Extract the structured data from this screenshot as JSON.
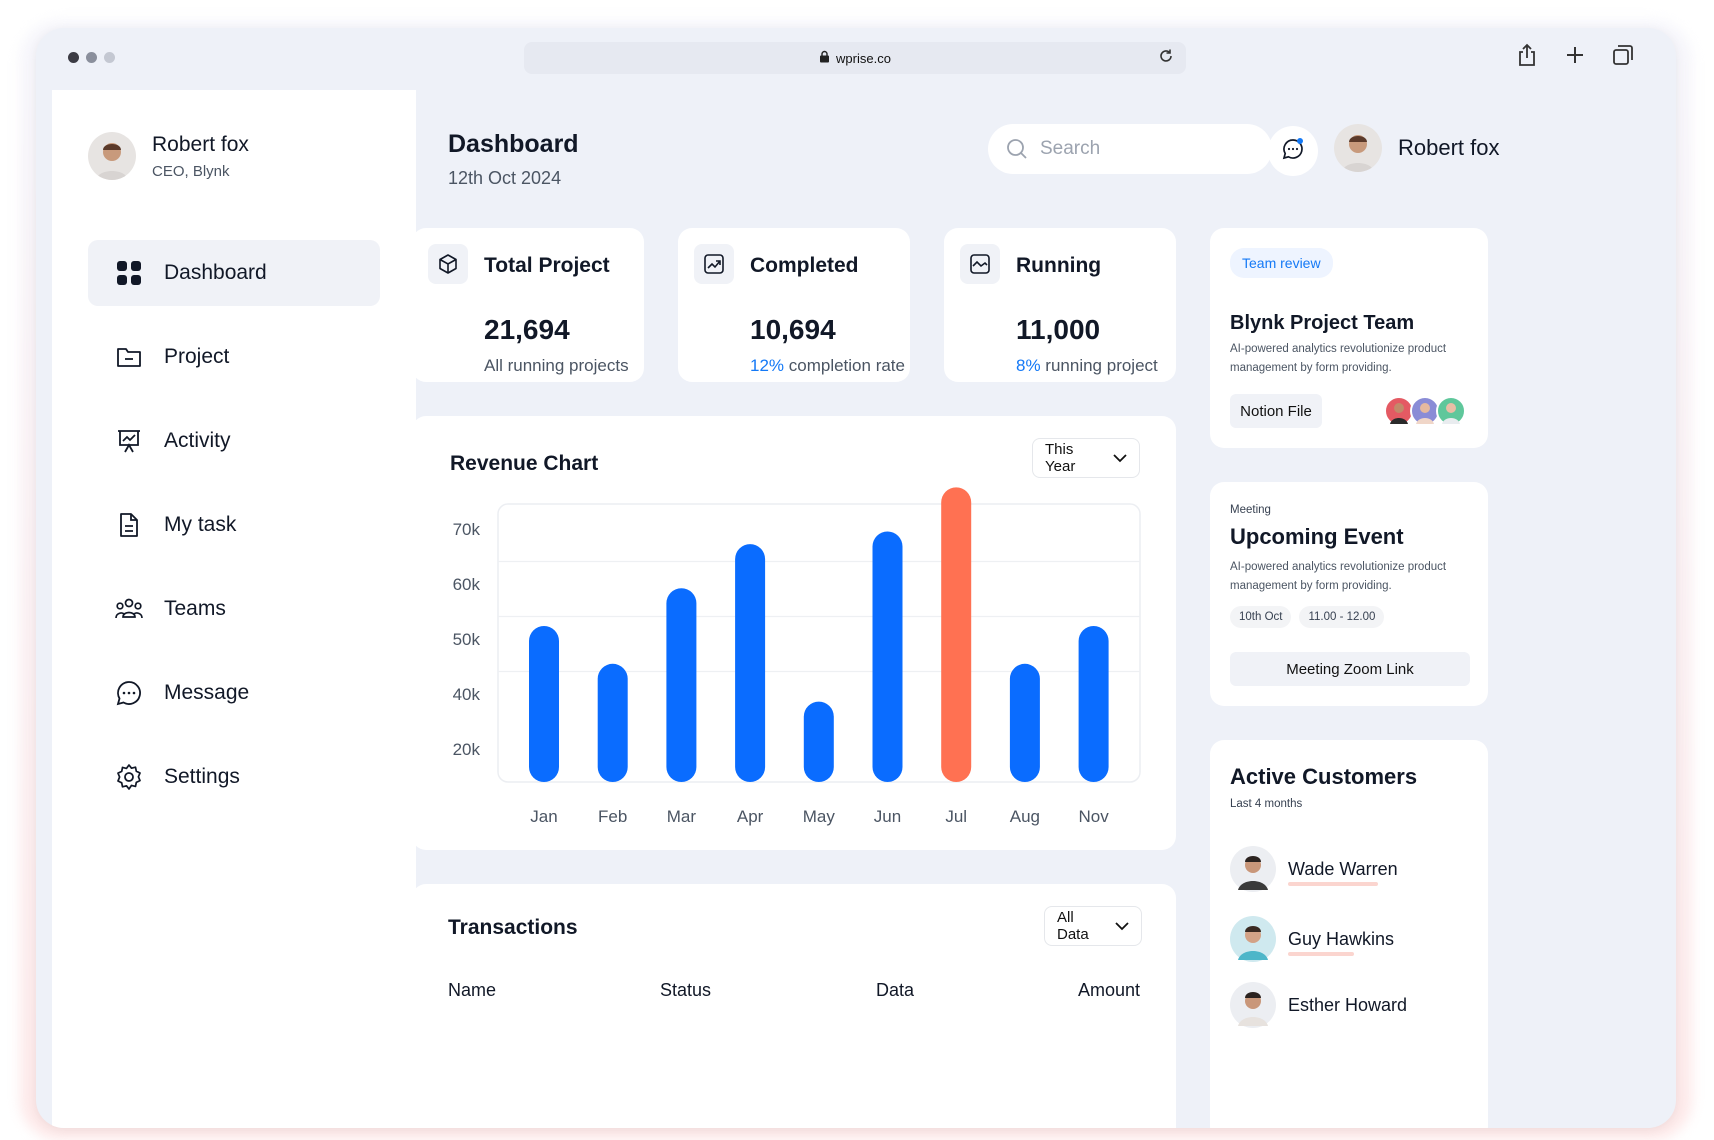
{
  "browser": {
    "url": "wprise.co",
    "dot_colors": [
      "#3b3b44",
      "#8a8f9c",
      "#c4c8d2"
    ]
  },
  "sidebar": {
    "user_name": "Robert fox",
    "user_role": "CEO, Blynk",
    "items": [
      {
        "label": "Dashboard",
        "icon": "dashboard-icon",
        "active": true
      },
      {
        "label": "Project",
        "icon": "folder-icon"
      },
      {
        "label": "Activity",
        "icon": "activity-icon"
      },
      {
        "label": "My task",
        "icon": "document-icon"
      },
      {
        "label": "Teams",
        "icon": "teams-icon"
      },
      {
        "label": "Message",
        "icon": "message-icon"
      },
      {
        "label": "Settings",
        "icon": "gear-icon"
      }
    ]
  },
  "header": {
    "title": "Dashboard",
    "date": "12th Oct 2024",
    "search_placeholder": "Search",
    "user_name": "Robert fox"
  },
  "stats": [
    {
      "label": "Total Project",
      "value": "21,694",
      "highlight": "",
      "sub": "All running projects",
      "icon": "cube-icon"
    },
    {
      "label": "Completed",
      "value": "10,694",
      "highlight": "12%",
      "sub": " completion rate",
      "icon": "trend-up-icon"
    },
    {
      "label": "Running",
      "value": "11,000",
      "highlight": "8%",
      "sub": " running project",
      "icon": "chart-line-icon"
    }
  ],
  "revenue": {
    "title": "Revenue Chart",
    "filter": "This Year"
  },
  "chart_data": {
    "type": "bar",
    "title": "Revenue Chart",
    "categories": [
      "Jan",
      "Feb",
      "Mar",
      "Apr",
      "May",
      "Jun",
      "Jul",
      "Aug",
      "Nov"
    ],
    "values": [
      50,
      44,
      56,
      63,
      38,
      65,
      72,
      44,
      50
    ],
    "highlight_index": 6,
    "y_ticks": [
      "70k",
      "60k",
      "50k",
      "40k",
      "20k"
    ],
    "ylim": [
      20,
      70
    ],
    "colors": {
      "bar": "#0a6cff",
      "highlight": "#ff7152"
    },
    "grid": true
  },
  "transactions": {
    "title": "Transactions",
    "filter": "All Data",
    "columns": [
      "Name",
      "Status",
      "Data",
      "Amount"
    ]
  },
  "team_review": {
    "tag": "Team review",
    "title": "Blynk Project Team",
    "desc_line1": "AI-powered analytics revolutionize product",
    "desc_line2": "management by form providing.",
    "button": "Notion File"
  },
  "event": {
    "kicker": "Meeting",
    "title": "Upcoming Event",
    "desc_line1": "AI-powered analytics revolutionize product",
    "desc_line2": "management by form providing.",
    "date": "10th Oct",
    "time": "11.00 - 12.00",
    "button": "Meeting Zoom Link"
  },
  "customers": {
    "title": "Active Customers",
    "subtitle": "Last 4 months",
    "list": [
      {
        "name": "Wade Warren"
      },
      {
        "name": "Guy Hawkins"
      },
      {
        "name": "Esther Howard"
      }
    ]
  }
}
